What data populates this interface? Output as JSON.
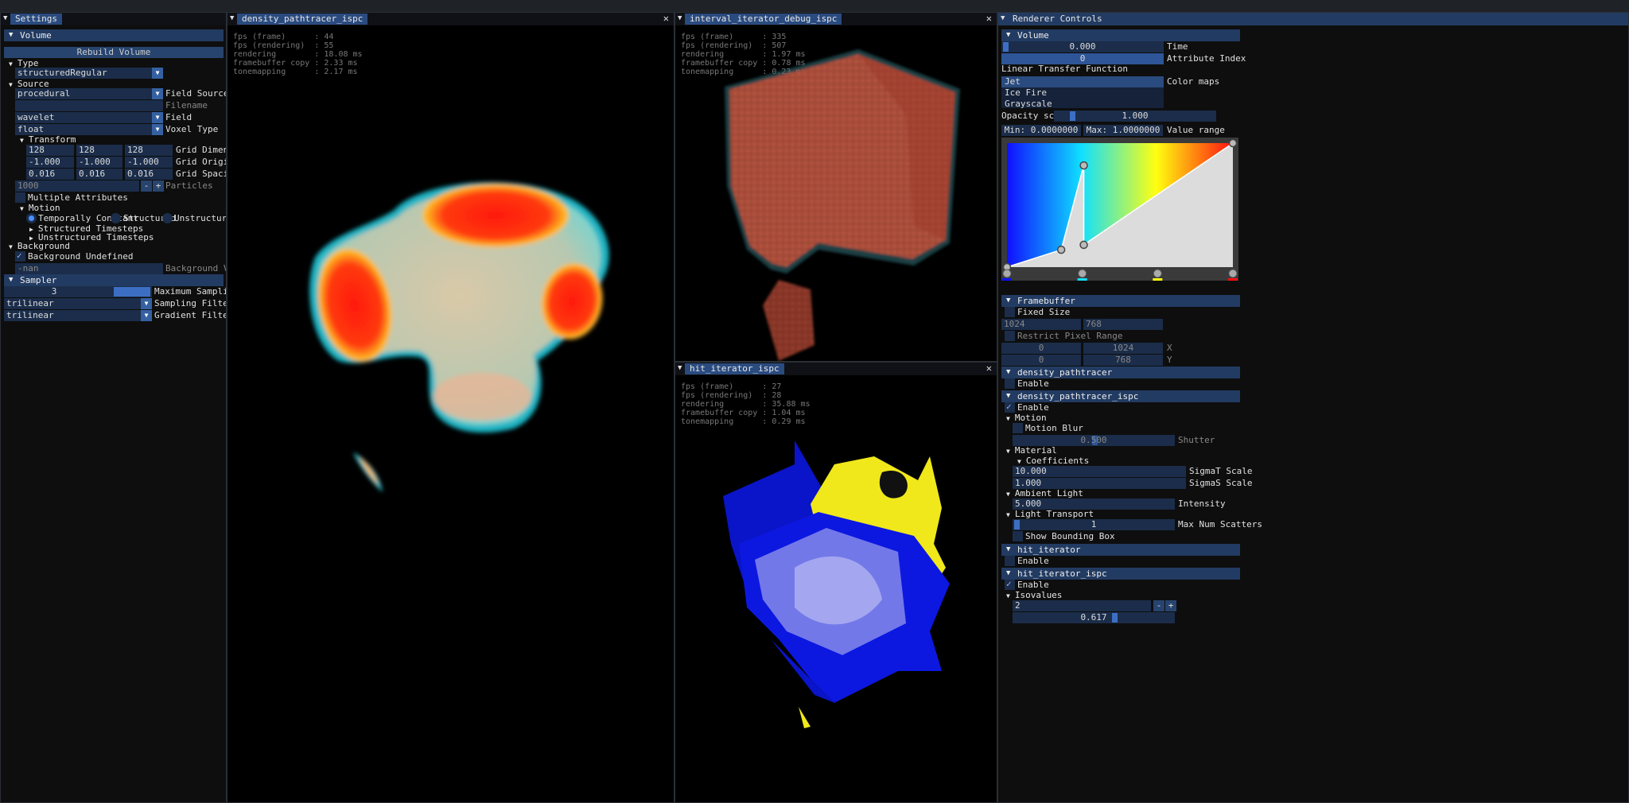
{
  "settings": {
    "title": "Settings",
    "volume_header": "Volume",
    "rebuild_label": "Rebuild Volume",
    "type_label": "Type",
    "type_value": "structuredRegular",
    "source_label": "Source",
    "field_source_value": "procedural",
    "field_source_label": "Field Source",
    "filename_value": "",
    "filename_label": "Filename",
    "field_value": "wavelet",
    "field_label": "Field",
    "voxel_type_value": "float",
    "voxel_type_label": "Voxel Type",
    "transform_label": "Transform",
    "grid_dim": [
      "128",
      "128",
      "128"
    ],
    "grid_dim_label": "Grid Dimensior",
    "grid_origin": [
      "-1.000",
      "-1.000",
      "-1.000"
    ],
    "grid_origin_label": "Grid Origin",
    "grid_spacing": [
      "0.016",
      "0.016",
      "0.016"
    ],
    "grid_spacing_label": "Grid Spacing",
    "particles_value": "1000",
    "particles_label": "Particles",
    "multi_attr_label": "Multiple Attributes",
    "motion_label": "Motion",
    "motion_opts": [
      "Temporally Constant",
      "Structured",
      "Unstructured"
    ],
    "structured_ts_label": "Structured Timesteps",
    "unstructured_ts_label": "Unstructured Timesteps",
    "background_label": "Background",
    "bg_undefined_label": "Background Undefined",
    "bg_value": "-nan",
    "bg_value_label": "Background Value",
    "sampler_header": "Sampler",
    "max_sampling_value": "3",
    "max_sampling_label": "Maximum Sampling Dep",
    "sampling_filter_value": "trilinear",
    "sampling_filter_label": "Sampling Filter",
    "gradient_filter_value": "trilinear",
    "gradient_filter_label": "Gradient Filter"
  },
  "views": {
    "density": {
      "title": "density_pathtracer_ispc",
      "stats": "fps (frame)      : 44\nfps (rendering)  : 55\nrendering        : 18.08 ms\nframebuffer copy : 2.33 ms\ntonemapping      : 2.17 ms"
    },
    "interval": {
      "title": "interval_iterator_debug_ispc",
      "stats": "fps (frame)      : 335\nfps (rendering)  : 507\nrendering        : 1.97 ms\nframebuffer copy : 0.78 ms\ntonemapping      : 0.23 ms"
    },
    "hit": {
      "title": "hit_iterator_ispc",
      "stats": "fps (frame)      : 27\nfps (rendering)  : 28\nrendering        : 35.88 ms\nframebuffer copy : 1.04 ms\ntonemapping      : 0.29 ms"
    },
    "close_glyph": "✕"
  },
  "renderer": {
    "title": "Renderer Controls",
    "volume_header": "Volume",
    "time_value": "0.000",
    "time_label": "Time",
    "attr_value": "0",
    "attr_label": "Attribute Index",
    "ltf_label": "Linear Transfer Function",
    "colormaps": [
      "Jet",
      "Ice Fire",
      "Grayscale"
    ],
    "colormaps_label": "Color maps",
    "opacity_label": "Opacity scale",
    "opacity_value": "1.000",
    "min_value": "Min: 0.0000000",
    "max_value": "Max: 1.0000000",
    "value_range_label": "Value range",
    "tf_points": [
      [
        0.0,
        0.0
      ],
      [
        0.24,
        0.14
      ],
      [
        0.34,
        0.82
      ],
      [
        0.34,
        0.18
      ],
      [
        1.0,
        1.0
      ]
    ],
    "tf_stops": [
      "#1010ff",
      "#10e0ff",
      "#ffff10",
      "#ff1010"
    ],
    "framebuffer_header": "Framebuffer",
    "fixed_size_label": "Fixed Size",
    "fb_width": "1024",
    "fb_height": "768",
    "restrict_label": "Restrict Pixel Range",
    "x_range": [
      "0",
      "1024"
    ],
    "x_label": "X",
    "y_range": [
      "0",
      "768"
    ],
    "y_label": "Y",
    "dp_header": "density_pathtracer",
    "enable_label": "Enable",
    "dpi_header": "density_pathtracer_ispc",
    "motion_label": "Motion",
    "motion_blur_label": "Motion Blur",
    "shutter_value": "0.500",
    "shutter_label": "Shutter",
    "material_label": "Material",
    "coefficients_label": "Coefficients",
    "sigmat_value": "10.000",
    "sigmat_label": "SigmaT Scale",
    "sigmas_value": "1.000",
    "sigmas_label": "SigmaS Scale",
    "ambient_label": "Ambient Light",
    "intensity_value": "5.000",
    "intensity_label": "Intensity",
    "light_transport_label": "Light Transport",
    "scatters_value": "1",
    "scatters_label": "Max Num Scatters",
    "show_bbox_label": "Show Bounding Box",
    "hit_header": "hit_iterator",
    "hit_ispc_header": "hit_iterator_ispc",
    "isovalues_label": "Isovalues",
    "iso_count": "2",
    "iso_value": "0.617",
    "minus": "-",
    "plus": "+"
  }
}
